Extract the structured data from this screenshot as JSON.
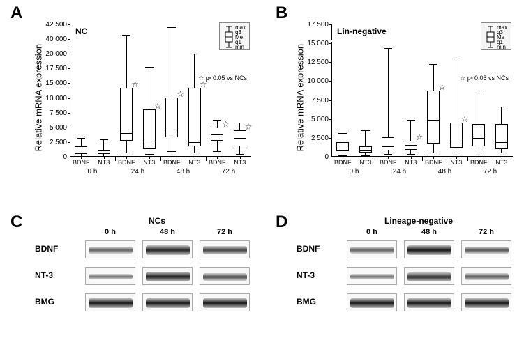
{
  "panelA": {
    "label": "A",
    "subtitle": "NC",
    "ylabel": "Relative mRNA expression",
    "yticks": [
      "0",
      "2 500",
      "5 000",
      "7 500",
      "10 000",
      "15 000",
      "17 500",
      "20 000",
      "40 000",
      "42 500"
    ],
    "break_positions": [
      0.54,
      0.7,
      0.82
    ],
    "groups": [
      "0 h",
      "24 h",
      "48 h",
      "72 h"
    ],
    "xlabels": [
      "BDNF",
      "NT3",
      "BDNF",
      "NT3",
      "BDNF",
      "NT3",
      "BDNF",
      "NT3"
    ],
    "pnote": "p<0.05 vs NCs",
    "legend": {
      "labels": [
        "max",
        "q3",
        "Me",
        "q1",
        "min"
      ]
    },
    "boxes": [
      {
        "q1": 0.02,
        "me": 0.03,
        "q3": 0.08,
        "min": 0.0,
        "max": 0.14,
        "star": false
      },
      {
        "q1": 0.02,
        "me": 0.03,
        "q3": 0.05,
        "min": 0.0,
        "max": 0.13,
        "star": false
      },
      {
        "q1": 0.12,
        "me": 0.18,
        "q3": 0.52,
        "min": 0.03,
        "max": 0.92,
        "star": true
      },
      {
        "q1": 0.06,
        "me": 0.1,
        "q3": 0.36,
        "min": 0.02,
        "max": 0.68,
        "star": true
      },
      {
        "q1": 0.15,
        "me": 0.19,
        "q3": 0.45,
        "min": 0.04,
        "max": 0.98,
        "star": true
      },
      {
        "q1": 0.08,
        "me": 0.11,
        "q3": 0.52,
        "min": 0.03,
        "max": 0.78,
        "star": true
      },
      {
        "q1": 0.12,
        "me": 0.17,
        "q3": 0.22,
        "min": 0.04,
        "max": 0.28,
        "star": true
      },
      {
        "q1": 0.08,
        "me": 0.14,
        "q3": 0.2,
        "min": 0.02,
        "max": 0.26,
        "star": true
      }
    ]
  },
  "panelB": {
    "label": "B",
    "subtitle": "Lin-negative",
    "ylabel": "Relative mRNA expression",
    "yticks": [
      "0",
      "2 500",
      "5 000",
      "7 500",
      "10 000",
      "12 500",
      "15 000",
      "17 500"
    ],
    "break_positions": [
      0.88
    ],
    "groups": [
      "0 h",
      "24 h",
      "48 h",
      "72 h"
    ],
    "xlabels": [
      "BDNF",
      "NT3",
      "BDNF",
      "NT3",
      "BDNF",
      "NT3",
      "BDNF",
      "NT3"
    ],
    "pnote": "p<0.05 vs NCs",
    "legend": {
      "labels": [
        "max",
        "q3",
        "Me",
        "q1",
        "min"
      ]
    },
    "boxes": [
      {
        "q1": 0.04,
        "me": 0.07,
        "q3": 0.11,
        "min": 0.01,
        "max": 0.18,
        "star": false
      },
      {
        "q1": 0.03,
        "me": 0.05,
        "q3": 0.08,
        "min": 0.01,
        "max": 0.2,
        "star": false
      },
      {
        "q1": 0.05,
        "me": 0.08,
        "q3": 0.15,
        "min": 0.02,
        "max": 0.82,
        "star": false
      },
      {
        "q1": 0.05,
        "me": 0.09,
        "q3": 0.12,
        "min": 0.02,
        "max": 0.28,
        "star": true
      },
      {
        "q1": 0.1,
        "me": 0.28,
        "q3": 0.5,
        "min": 0.03,
        "max": 0.7,
        "star": true
      },
      {
        "q1": 0.07,
        "me": 0.12,
        "q3": 0.26,
        "min": 0.03,
        "max": 0.74,
        "star": true
      },
      {
        "q1": 0.08,
        "me": 0.14,
        "q3": 0.25,
        "min": 0.03,
        "max": 0.5,
        "star": false
      },
      {
        "q1": 0.06,
        "me": 0.11,
        "q3": 0.25,
        "min": 0.03,
        "max": 0.38,
        "star": false
      }
    ]
  },
  "panelC": {
    "label": "C",
    "title": "NCs",
    "times": [
      "0 h",
      "48 h",
      "72 h"
    ],
    "rows": [
      "BDNF",
      "NT-3",
      "BMG"
    ],
    "intensities": [
      [
        0.35,
        0.75,
        0.55
      ],
      [
        0.25,
        0.8,
        0.5
      ],
      [
        0.85,
        0.85,
        0.85
      ]
    ]
  },
  "panelD": {
    "label": "D",
    "title": "Lineage-negative",
    "times": [
      "0 h",
      "48 h",
      "72 h"
    ],
    "rows": [
      "BDNF",
      "NT-3",
      "BMG"
    ],
    "intensities": [
      [
        0.35,
        0.85,
        0.45
      ],
      [
        0.25,
        0.7,
        0.4
      ],
      [
        0.85,
        0.85,
        0.85
      ]
    ]
  },
  "colors": {
    "box_fill": "#ffffff",
    "box_stroke": "#000000",
    "background": "#ffffff",
    "axis": "#000000",
    "grid": "#d0d0d0",
    "band_dark": "#2a2a2a",
    "band_light": "#888888"
  }
}
